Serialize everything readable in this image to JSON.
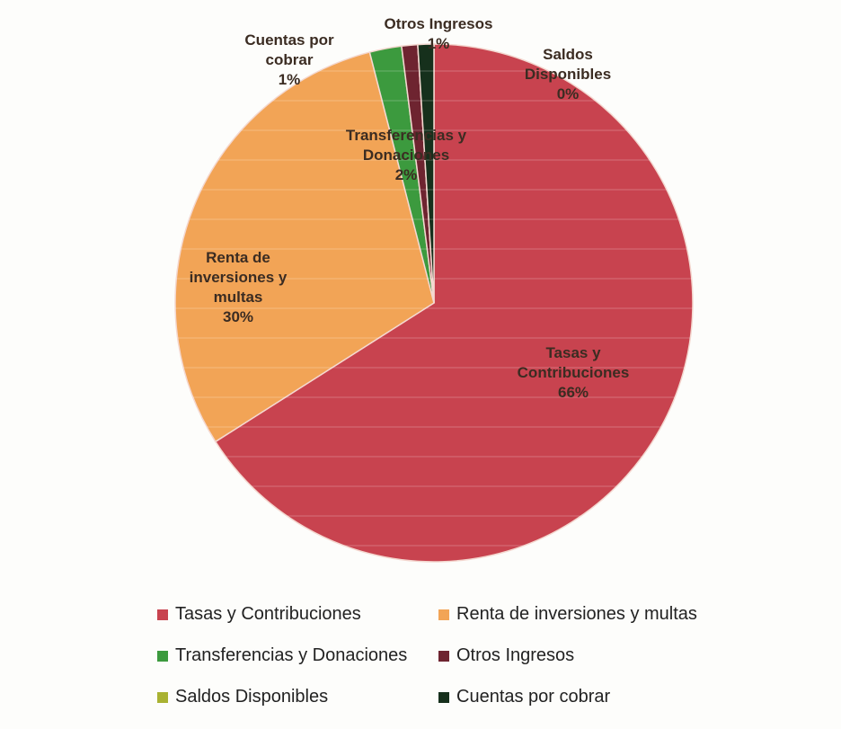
{
  "chart_data": {
    "type": "pie",
    "categories": [
      "Tasas y Contribuciones",
      "Renta de inversiones y multas",
      "Transferencias y Donaciones",
      "Otros Ingresos",
      "Saldos Disponibles",
      "Cuentas por cobrar"
    ],
    "values": [
      66,
      30,
      2,
      1,
      0,
      1
    ],
    "value_labels": [
      "66%",
      "30%",
      "2%",
      "1%",
      "0%",
      "1%"
    ],
    "colors": [
      "#c8434f",
      "#f2a456",
      "#3c9a3e",
      "#6e2430",
      "#a9b232",
      "#16301c"
    ],
    "legend": "bottom"
  }
}
